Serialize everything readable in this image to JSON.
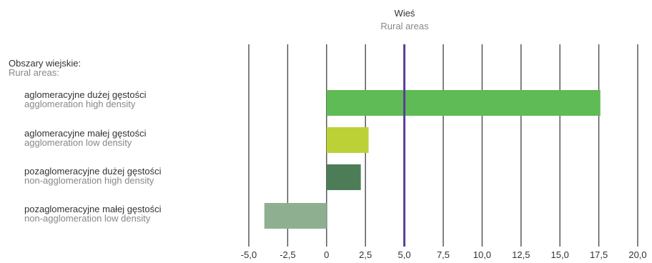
{
  "chart_data": {
    "type": "bar",
    "orientation": "horizontal",
    "title": "Wieś",
    "subtitle": "Rural areas",
    "group_label": {
      "pl": "Obszary wiejskie:",
      "en": "Rural areas:"
    },
    "categories": [
      {
        "pl": "aglomeracyjne dużej gęstości",
        "en": "agglomeration high density"
      },
      {
        "pl": "aglomeracyjne małej gęstości",
        "en": "agglomeration low density"
      },
      {
        "pl": "pozaglomeracyjne dużej gęstości",
        "en": "non-agglomeration high density"
      },
      {
        "pl": "pozaglomeracyjne małej gęstości",
        "en": "non-agglomeration low density"
      }
    ],
    "values": [
      17.6,
      2.7,
      2.2,
      -4.0
    ],
    "colors": [
      "#5fbb55",
      "#bcd136",
      "#4c7d57",
      "#8faf91"
    ],
    "reference_line": {
      "value": 5.0,
      "color": "#5a3d99"
    },
    "xlim": [
      -5.0,
      20.0
    ],
    "xticks": [
      "-5,0",
      "-2,5",
      "0",
      "2,5",
      "5,0",
      "7,5",
      "10,0",
      "12,5",
      "15,0",
      "17,5",
      "20,0"
    ],
    "grid": true
  }
}
